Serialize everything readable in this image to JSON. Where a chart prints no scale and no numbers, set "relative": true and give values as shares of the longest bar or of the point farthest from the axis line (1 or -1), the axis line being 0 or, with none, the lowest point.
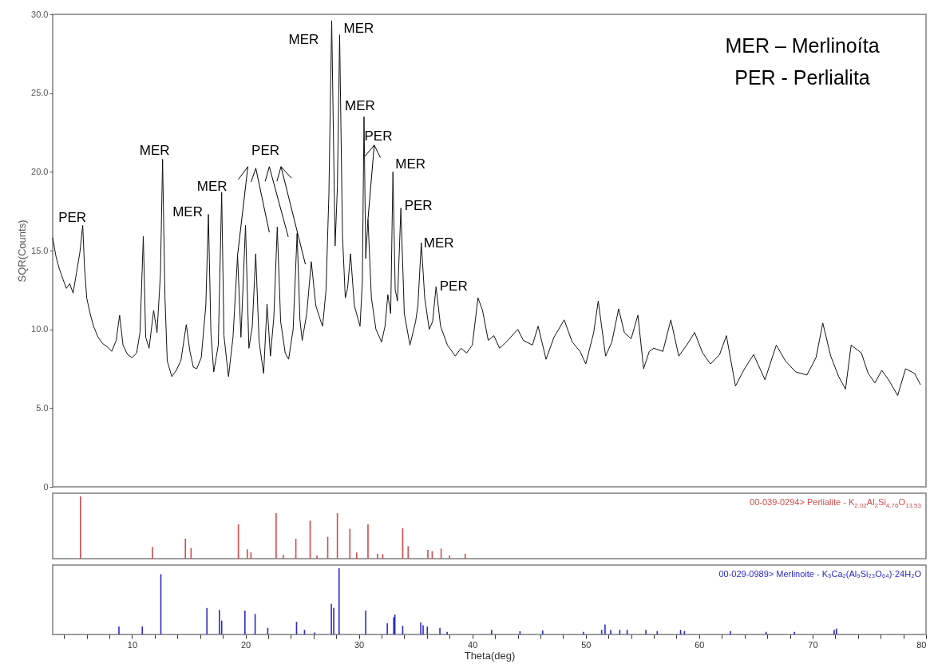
{
  "chart_data": [
    {
      "type": "line",
      "ylabel": "SQR(Counts)",
      "xlim": [
        3,
        80
      ],
      "ylim": [
        0,
        30
      ],
      "tick_labels": "y",
      "yticks": [
        0,
        {
          "value": 5,
          "label": "5.0"
        },
        {
          "value": 10,
          "label": "10.0"
        },
        {
          "value": 15,
          "label": "15.0"
        },
        {
          "value": 20,
          "label": "20.0"
        },
        {
          "value": 25,
          "label": "25.0"
        },
        {
          "value": 30,
          "label": "30.0"
        }
      ],
      "x": [
        3,
        3.3,
        3.6,
        3.9,
        4.2,
        4.5,
        4.8,
        5.1,
        5.4,
        5.65,
        5.8,
        6.0,
        6.3,
        6.6,
        7.0,
        7.4,
        7.8,
        8.2,
        8.6,
        8.9,
        9.2,
        9.6,
        10.0,
        10.4,
        10.7,
        10.99,
        11.2,
        11.5,
        11.9,
        12.2,
        12.5,
        12.69,
        12.9,
        13.1,
        13.5,
        13.9,
        14.3,
        14.78,
        15.1,
        15.4,
        15.7,
        16.1,
        16.5,
        16.73,
        16.95,
        17.2,
        17.6,
        17.9,
        18.1,
        18.5,
        18.9,
        19.3,
        19.6,
        20.0,
        20.3,
        20.6,
        20.9,
        21.2,
        21.6,
        21.9,
        22.2,
        22.5,
        22.8,
        23.1,
        23.5,
        23.8,
        24.2,
        24.55,
        24.8,
        25.0,
        25.4,
        25.8,
        26.2,
        26.6,
        26.8,
        27.1,
        27.35,
        27.6,
        27.9,
        28.1,
        28.3,
        28.55,
        28.8,
        29.0,
        29.26,
        29.6,
        30.1,
        30.3,
        30.45,
        30.6,
        30.8,
        31.1,
        31.5,
        32.0,
        32.3,
        32.55,
        32.8,
        33.0,
        33.2,
        33.4,
        33.7,
        34.0,
        34.5,
        35.0,
        35.2,
        35.5,
        35.8,
        36.2,
        36.5,
        36.8,
        37.2,
        37.8,
        38.5,
        39.0,
        39.5,
        40.0,
        40.5,
        40.9,
        41.4,
        41.9,
        42.4,
        43.0,
        44.0,
        44.5,
        45.3,
        45.8,
        46.5,
        47.2,
        48.1,
        48.8,
        49.5,
        50.0,
        50.7,
        51.1,
        51.75,
        52.3,
        52.9,
        53.4,
        54.0,
        54.6,
        55.1,
        55.6,
        56.0,
        56.8,
        57.5,
        58.2,
        58.9,
        59.6,
        60.3,
        61.0,
        61.8,
        62.4,
        63.2,
        64.0,
        64.8,
        65.8,
        66.8,
        67.6,
        68.5,
        69.5,
        70.3,
        70.9,
        71.6,
        72.3,
        72.9,
        73.4,
        74.3,
        74.9,
        75.5,
        76.1,
        76.7,
        77.5,
        78.2,
        79.0,
        79.5
      ],
      "series": [
        {
          "color": "#111111",
          "values": [
            15.8,
            14.6,
            13.8,
            13.2,
            12.6,
            12.9,
            12.3,
            13.6,
            14.9,
            16.6,
            14.0,
            12.0,
            11.0,
            10.2,
            9.5,
            9.1,
            8.9,
            8.6,
            9.3,
            10.9,
            9.0,
            8.4,
            8.2,
            8.5,
            9.8,
            15.9,
            9.5,
            8.8,
            11.2,
            9.8,
            13.5,
            20.8,
            12.0,
            8.0,
            7.0,
            7.4,
            8.0,
            10.3,
            8.6,
            7.6,
            7.5,
            8.2,
            11.5,
            17.3,
            9.8,
            7.3,
            9.0,
            18.7,
            9.6,
            7.0,
            9.5,
            14.7,
            9.5,
            16.6,
            8.8,
            10.2,
            14.8,
            9.2,
            7.2,
            11.6,
            8.3,
            10.8,
            16.5,
            10.5,
            8.5,
            8.1,
            10.0,
            16.1,
            10.6,
            9.3,
            11.0,
            14.3,
            11.5,
            10.6,
            10.2,
            12.5,
            18.5,
            29.6,
            15.3,
            19.0,
            28.7,
            16.0,
            12.0,
            12.6,
            14.8,
            11.5,
            10.2,
            13.0,
            23.5,
            14.5,
            17.0,
            12.0,
            10.0,
            9.2,
            10.2,
            12.2,
            11.0,
            20.0,
            12.5,
            11.8,
            17.7,
            11.0,
            9.0,
            10.5,
            11.5,
            15.5,
            12.0,
            10.0,
            10.5,
            12.7,
            10.2,
            9.0,
            8.3,
            8.8,
            8.5,
            9.0,
            12.0,
            11.2,
            9.3,
            9.6,
            8.8,
            9.2,
            10.0,
            9.3,
            9.0,
            10.2,
            8.1,
            9.5,
            10.6,
            9.2,
            8.6,
            7.8,
            9.8,
            11.8,
            8.3,
            9.2,
            11.3,
            9.8,
            9.4,
            10.9,
            7.5,
            8.6,
            8.8,
            8.6,
            10.6,
            8.3,
            9.0,
            9.8,
            8.5,
            7.8,
            8.4,
            9.6,
            6.4,
            7.5,
            8.4,
            6.8,
            9.0,
            8.0,
            7.3,
            7.1,
            8.2,
            10.4,
            8.3,
            7.0,
            6.2,
            9.0,
            8.5,
            7.2,
            6.6,
            7.4,
            6.8,
            5.8,
            7.5,
            7.2,
            6.5
          ]
        }
      ],
      "annotations": [
        {
          "text": "PER",
          "x": 5.65,
          "y": 16.6
        },
        {
          "text": "MER",
          "x": 12.69,
          "y": 20.8
        },
        {
          "text": "MER",
          "x": 16.73,
          "y": 17.3
        },
        {
          "text": "MER",
          "x": 17.9,
          "y": 18.7
        },
        {
          "text": "PER",
          "x": 19.3,
          "y": 14.7
        },
        {
          "text": "MER",
          "x": 27.6,
          "y": 29.6
        },
        {
          "text": "MER",
          "x": 28.3,
          "y": 28.7
        },
        {
          "text": "MER",
          "x": 30.45,
          "y": 23.5
        },
        {
          "text": "PER",
          "x": 30.8,
          "y": 17.0
        },
        {
          "text": "MER",
          "x": 33.0,
          "y": 20.0
        },
        {
          "text": "PER",
          "x": 33.7,
          "y": 17.7
        },
        {
          "text": "MER",
          "x": 35.5,
          "y": 15.5
        },
        {
          "text": "PER",
          "x": 36.8,
          "y": 12.7
        },
        "MER – Merlinoíta",
        "PER - Perlialita"
      ]
    },
    {
      "type": "bar",
      "relative": true,
      "xlim": [
        3,
        80
      ],
      "tick_labels": false,
      "legend": "top right",
      "x": [
        5.45,
        11.8,
        14.7,
        15.2,
        19.37,
        20.16,
        20.48,
        22.7,
        23.33,
        24.44,
        25.7,
        26.3,
        27.25,
        28.1,
        29.2,
        29.8,
        30.8,
        31.64,
        32.1,
        33.86,
        34.34,
        36.08,
        36.46,
        37.25,
        37.99,
        39.37
      ],
      "series": [
        {
          "name": "00-039-0294> Perlialite - K$_{2.02}$Al$_{2}$Si$_{4.76}$O$_{13.53}$",
          "color": "#d24b4b",
          "values": [
            1.0,
            0.19,
            0.32,
            0.17,
            0.55,
            0.15,
            0.1,
            0.73,
            0.06,
            0.32,
            0.61,
            0.05,
            0.35,
            0.73,
            0.48,
            0.1,
            0.55,
            0.08,
            0.07,
            0.49,
            0.2,
            0.14,
            0.12,
            0.16,
            0.05,
            0.08
          ]
        }
      ]
    },
    {
      "type": "bar",
      "relative": true,
      "xlim": [
        3,
        80
      ],
      "tick_labels": "x",
      "legend": "top right",
      "xlabel": "Theta(deg)",
      "xticks": [
        {
          "value": 4,
          "label": null
        },
        {
          "value": 6,
          "label": null
        },
        {
          "value": 8,
          "label": null
        },
        10,
        {
          "value": 12,
          "label": null
        },
        {
          "value": 14,
          "label": null
        },
        {
          "value": 16,
          "label": null
        },
        {
          "value": 18,
          "label": null
        },
        20,
        {
          "value": 22,
          "label": null
        },
        {
          "value": 24,
          "label": null
        },
        {
          "value": 26,
          "label": null
        },
        {
          "value": 28,
          "label": null
        },
        30,
        {
          "value": 32,
          "label": null
        },
        {
          "value": 34,
          "label": null
        },
        {
          "value": 36,
          "label": null
        },
        {
          "value": 38,
          "label": null
        },
        40,
        {
          "value": 42,
          "label": null
        },
        {
          "value": 44,
          "label": null
        },
        {
          "value": 46,
          "label": null
        },
        {
          "value": 48,
          "label": null
        },
        50,
        {
          "value": 52,
          "label": null
        },
        {
          "value": 54,
          "label": null
        },
        {
          "value": 56,
          "label": null
        },
        {
          "value": 58,
          "label": null
        },
        60,
        {
          "value": 62,
          "label": null
        },
        {
          "value": 64,
          "label": null
        },
        {
          "value": 66,
          "label": null
        },
        {
          "value": 68,
          "label": null
        },
        70,
        {
          "value": 72,
          "label": null
        },
        {
          "value": 74,
          "label": null
        },
        {
          "value": 76,
          "label": null
        },
        {
          "value": 78,
          "label": null
        },
        80
      ],
      "x": [
        8.84,
        10.9,
        12.54,
        16.6,
        17.7,
        17.9,
        19.95,
        20.85,
        21.96,
        24.5,
        25.2,
        26.1,
        27.57,
        27.78,
        28.25,
        30.6,
        32.5,
        33.07,
        33.17,
        33.86,
        35.45,
        35.66,
        36.03,
        37.14,
        37.78,
        41.7,
        44.2,
        46.2,
        49.8,
        51.4,
        51.7,
        52.2,
        53.0,
        53.65,
        55.3,
        56.3,
        58.36,
        58.7,
        62.75,
        65.9,
        68.4,
        71.9,
        72.1
      ],
      "series": [
        {
          "name": "00-029-0989> Merlinoite - K₅Ca₂(Al₉Si₂₃O₆₄)·24H₂O",
          "color": "#2a2acb",
          "values": [
            0.12,
            0.12,
            0.91,
            0.4,
            0.37,
            0.21,
            0.36,
            0.31,
            0.1,
            0.19,
            0.07,
            0.03,
            0.46,
            0.4,
            1.0,
            0.36,
            0.17,
            0.26,
            0.3,
            0.13,
            0.18,
            0.14,
            0.12,
            0.1,
            0.04,
            0.07,
            0.05,
            0.06,
            0.04,
            0.07,
            0.15,
            0.07,
            0.07,
            0.07,
            0.07,
            0.05,
            0.07,
            0.05,
            0.05,
            0.04,
            0.04,
            0.07,
            0.09
          ]
        }
      ]
    }
  ]
}
